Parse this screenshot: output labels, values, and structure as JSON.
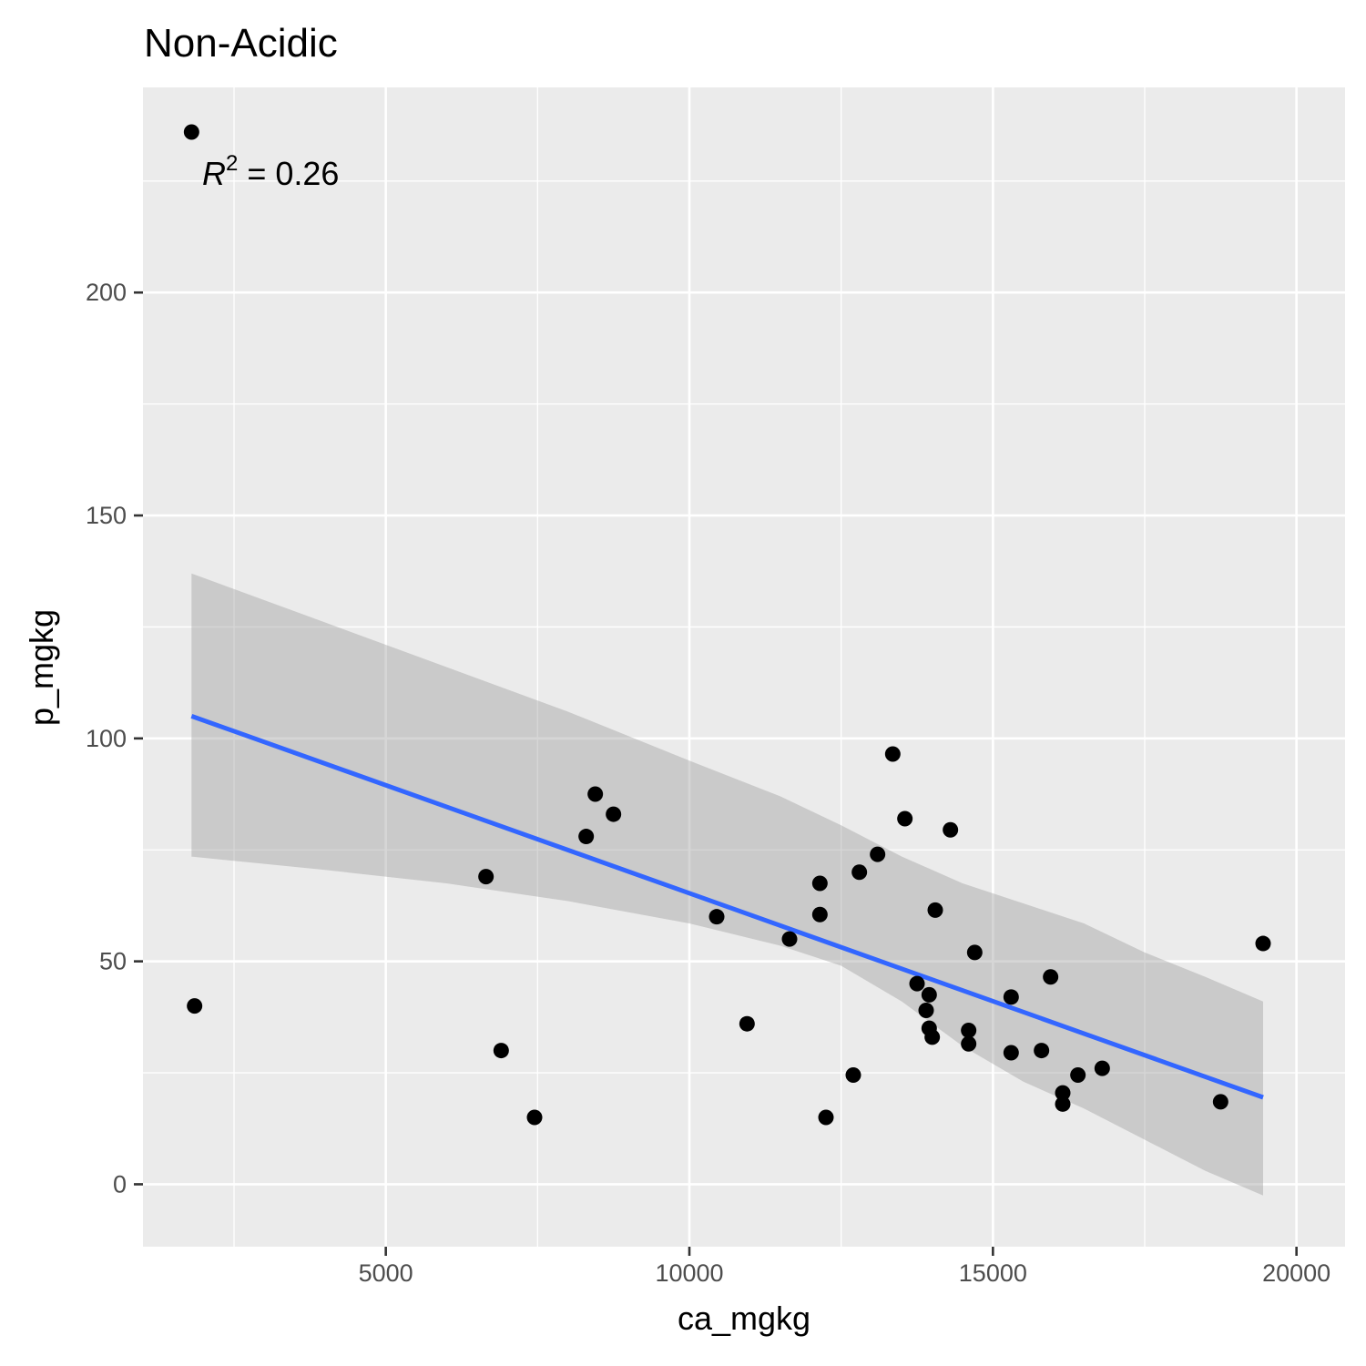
{
  "chart_data": {
    "type": "scatter",
    "title": "Non-Acidic",
    "xlabel": "ca_mgkg",
    "ylabel": "p_mgkg",
    "xlim": [
      1000,
      20800
    ],
    "ylim": [
      -14,
      246
    ],
    "x_ticks": [
      5000,
      10000,
      15000,
      20000
    ],
    "x_tick_labels": [
      "5000",
      "10000",
      "15000",
      "20000"
    ],
    "y_ticks": [
      0,
      50,
      100,
      150,
      200
    ],
    "y_tick_labels": [
      "0",
      "50",
      "100",
      "150",
      "200"
    ],
    "grid": true,
    "annotation": {
      "symbol": "R",
      "exponent": "2",
      "text": " = 0.26"
    },
    "points": [
      {
        "x": 1800,
        "y": 236
      },
      {
        "x": 1850,
        "y": 40
      },
      {
        "x": 6650,
        "y": 69
      },
      {
        "x": 6900,
        "y": 30
      },
      {
        "x": 7450,
        "y": 15
      },
      {
        "x": 8300,
        "y": 78
      },
      {
        "x": 8450,
        "y": 87.5
      },
      {
        "x": 8750,
        "y": 83
      },
      {
        "x": 10450,
        "y": 60
      },
      {
        "x": 10950,
        "y": 36
      },
      {
        "x": 11650,
        "y": 55
      },
      {
        "x": 12150,
        "y": 60.5
      },
      {
        "x": 12150,
        "y": 67.5
      },
      {
        "x": 12250,
        "y": 15
      },
      {
        "x": 12700,
        "y": 24.5
      },
      {
        "x": 12800,
        "y": 70
      },
      {
        "x": 13100,
        "y": 74
      },
      {
        "x": 13350,
        "y": 96.5
      },
      {
        "x": 13550,
        "y": 82
      },
      {
        "x": 13750,
        "y": 45
      },
      {
        "x": 13900,
        "y": 39
      },
      {
        "x": 13950,
        "y": 42.5
      },
      {
        "x": 13950,
        "y": 35
      },
      {
        "x": 14000,
        "y": 33
      },
      {
        "x": 14050,
        "y": 61.5
      },
      {
        "x": 14300,
        "y": 79.5
      },
      {
        "x": 14600,
        "y": 34.5
      },
      {
        "x": 14600,
        "y": 31.5
      },
      {
        "x": 14700,
        "y": 52
      },
      {
        "x": 15300,
        "y": 42
      },
      {
        "x": 15300,
        "y": 29.5
      },
      {
        "x": 15800,
        "y": 30
      },
      {
        "x": 15950,
        "y": 46.5
      },
      {
        "x": 16150,
        "y": 20.5
      },
      {
        "x": 16150,
        "y": 18
      },
      {
        "x": 16400,
        "y": 24.5
      },
      {
        "x": 16800,
        "y": 26
      },
      {
        "x": 18750,
        "y": 18.5
      },
      {
        "x": 19450,
        "y": 54
      }
    ],
    "fit_line": {
      "x": [
        1800,
        19450
      ],
      "y": [
        105,
        19.5
      ],
      "color": "#3366ff"
    },
    "confidence_band": {
      "x": [
        1800,
        4000,
        6000,
        8000,
        10000,
        11500,
        12500,
        13500,
        14500,
        15500,
        16500,
        17500,
        18500,
        19450
      ],
      "upper": [
        137,
        126,
        116,
        106,
        95,
        87,
        80.5,
        73.5,
        67.5,
        63,
        58.5,
        52,
        46.5,
        41
      ],
      "lower": [
        73.5,
        70.5,
        67.5,
        63.5,
        58.5,
        53.5,
        49,
        41,
        31,
        23,
        17,
        10,
        3,
        -2.5
      ],
      "color": "#999999"
    },
    "panel_background": "#ebebeb",
    "gridline_color": "#ffffff",
    "point_color": "#000000"
  }
}
